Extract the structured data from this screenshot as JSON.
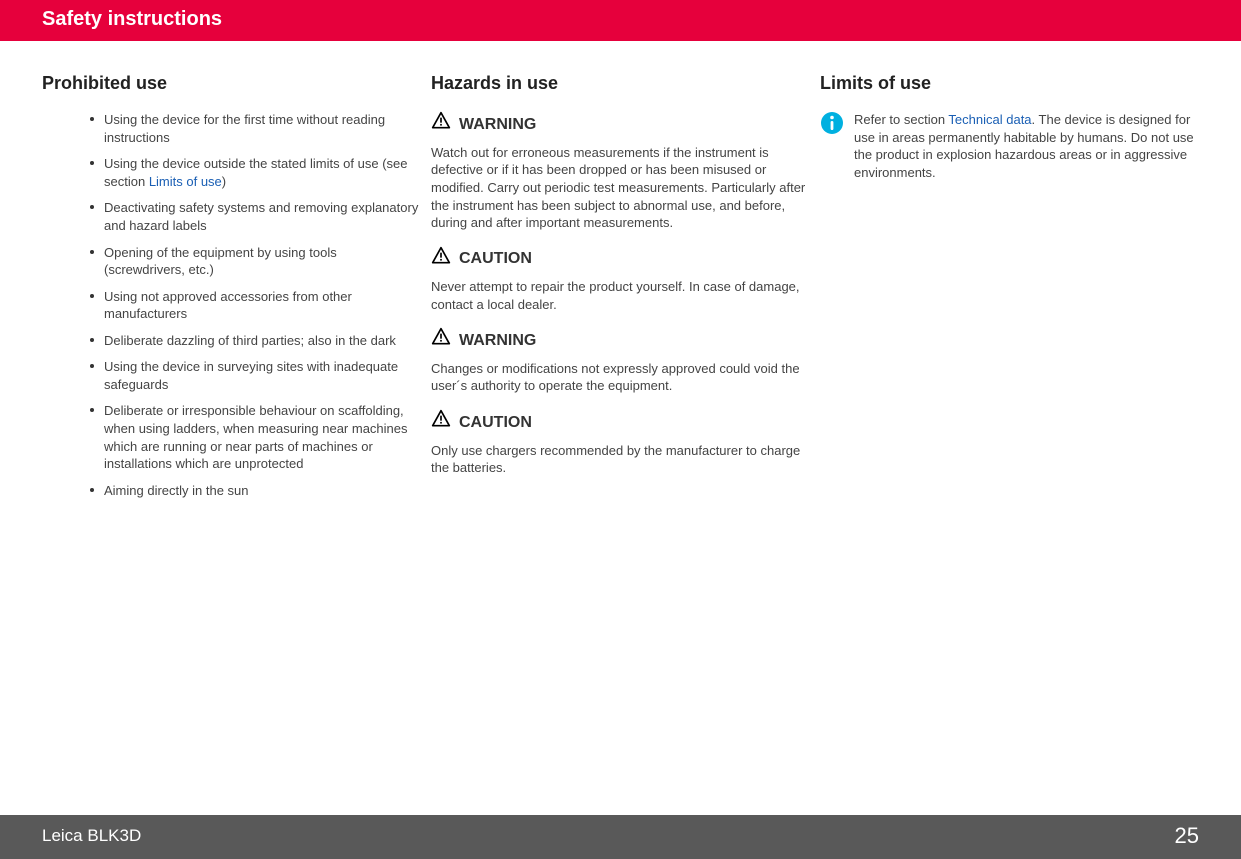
{
  "header": {
    "title": "Safety instructions"
  },
  "footer": {
    "product": "Leica BLK3D",
    "page": "25"
  },
  "colors": {
    "accent": "#e6003c",
    "footer_bg": "#595959",
    "link": "#1a5fb4",
    "info_icon": "#00b0e0"
  },
  "col1": {
    "heading": "Prohibited use",
    "items": [
      {
        "prefix": "Using the device for the first time without reading instructions"
      },
      {
        "prefix": "Using the device outside the stated limits of use (see section ",
        "link": "Limits of use",
        "suffix": ")"
      },
      {
        "prefix": "Deactivating safety systems and removing explanatory and hazard labels"
      },
      {
        "prefix": "Opening of the equipment by using tools (screwdrivers, etc.)"
      },
      {
        "prefix": "Using not approved accessories from other manufacturers"
      },
      {
        "prefix": "Deliberate dazzling of third parties; also in the dark"
      },
      {
        "prefix": "Using the device in surveying sites with inadequate safeguards"
      },
      {
        "prefix": "Deliberate or irresponsible behaviour on scaffolding, when using ladders, when measuring near machines which are running or near parts of machines or installations which are unprotected"
      },
      {
        "prefix": "Aiming directly in the sun"
      }
    ]
  },
  "col2": {
    "heading": "Hazards in use",
    "blocks": [
      {
        "label": "WARNING",
        "text": "Watch out for erroneous measurements if the instrument is defective or if it has been dropped or has been misused or modified. Carry out periodic test measurements. Particularly after the instrument has been subject to abnormal use, and before, during and after important measurements."
      },
      {
        "label": "CAUTION",
        "text": "Never attempt to repair the product yourself. In case of damage, contact a local dealer."
      },
      {
        "label": "WARNING",
        "text": "Changes or modifications not expressly approved could void the user´s authority to operate the equipment."
      },
      {
        "label": "CAUTION",
        "text": "Only use chargers recommended by the manufacturer to charge the batteries."
      }
    ]
  },
  "col3": {
    "heading": "Limits of use",
    "info": {
      "prefix": "Refer to section ",
      "link": "Technical data",
      "suffix": ". The device is designed for use in areas permanently habitable by humans. Do not use the product in explosion hazardous areas or in aggressive environments."
    }
  }
}
